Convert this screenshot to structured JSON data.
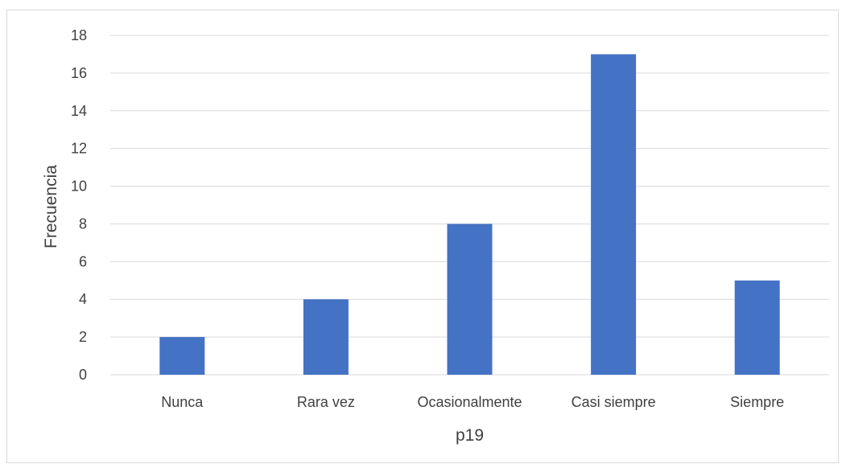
{
  "chart_data": {
    "type": "bar",
    "title": "",
    "xlabel": "p19",
    "ylabel": "Frecuencia",
    "categories": [
      "Nunca",
      "Rara vez",
      "Ocasionalmente",
      "Casi siempre",
      "Siempre"
    ],
    "values": [
      2,
      4,
      8,
      17,
      5
    ],
    "ylim": [
      0,
      18
    ],
    "yticks": [
      0,
      2,
      4,
      6,
      8,
      10,
      12,
      14,
      16,
      18
    ],
    "grid": true,
    "legend": "none",
    "bar_color": "#4472C4",
    "grid_color": "#d9d9d9"
  }
}
